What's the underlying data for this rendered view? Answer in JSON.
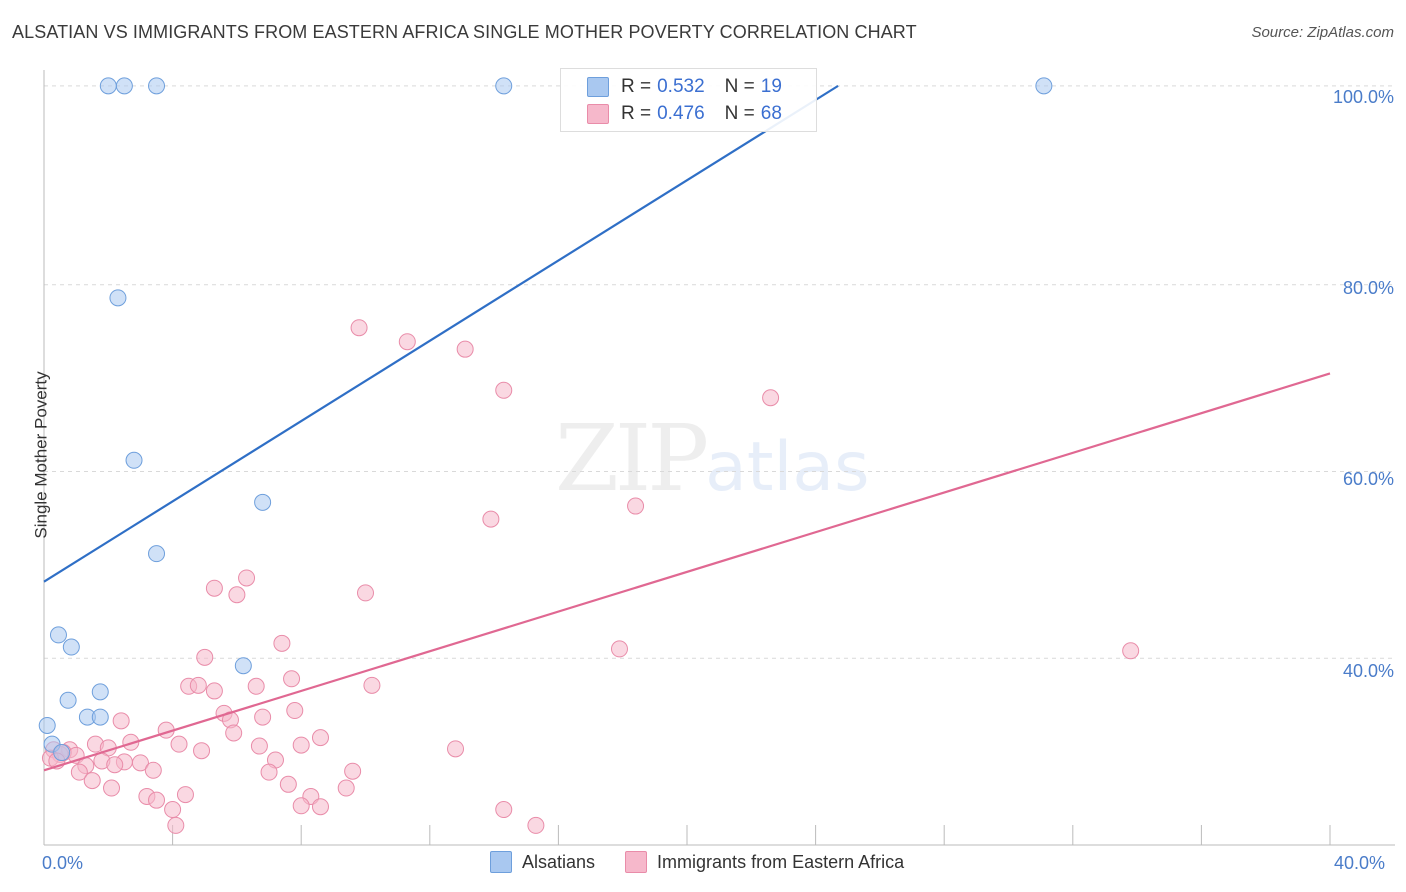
{
  "title": "ALSATIAN VS IMMIGRANTS FROM EASTERN AFRICA SINGLE MOTHER POVERTY CORRELATION CHART",
  "source": "Source: ZipAtlas.com",
  "watermark": {
    "zip": "ZIP",
    "atlas": "atlas"
  },
  "colors": {
    "blue_fill": "#a9c8f0",
    "blue_stroke": "#6e9fdc",
    "blue_line": "#2f6fc6",
    "pink_fill": "#f6b8cb",
    "pink_stroke": "#e98ca9",
    "pink_line": "#e06892",
    "grid": "#d9d9d9",
    "tick_text": "#4a7cc9"
  },
  "legend": {
    "rows": [
      {
        "r_label": "R =",
        "r_value": "0.532",
        "n_label": "N =",
        "n_value": "19"
      },
      {
        "r_label": "R =",
        "r_value": "0.476",
        "n_label": "N =",
        "n_value": "68"
      }
    ]
  },
  "bottom_legend": [
    "Alsatians",
    "Immigrants from Eastern Africa"
  ],
  "chart_data": {
    "type": "scatter",
    "title": "ALSATIAN VS IMMIGRANTS FROM EASTERN AFRICA SINGLE MOTHER POVERTY CORRELATION CHART",
    "xlabel": "",
    "ylabel": "Single Mother Poverty",
    "xlim": [
      0,
      40
    ],
    "ylim": [
      20,
      103
    ],
    "x_tick_labels": [
      "0.0%",
      "40.0%"
    ],
    "y_ticks": [
      40,
      60,
      80,
      100
    ],
    "y_tick_labels": [
      "40.0%",
      "60.0%",
      "80.0%",
      "100.0%"
    ],
    "grid": true,
    "series": [
      {
        "name": "Alsatians",
        "color": "#a9c8f0",
        "regression": {
          "x": [
            0,
            24.7
          ],
          "y": [
            48.2,
            101.3
          ]
        },
        "points": [
          {
            "x": 2.0,
            "y": 101.3
          },
          {
            "x": 2.5,
            "y": 101.3
          },
          {
            "x": 3.5,
            "y": 101.3
          },
          {
            "x": 14.3,
            "y": 101.3
          },
          {
            "x": 31.1,
            "y": 101.3
          },
          {
            "x": 2.3,
            "y": 78.6
          },
          {
            "x": 2.8,
            "y": 61.2
          },
          {
            "x": 6.8,
            "y": 56.7
          },
          {
            "x": 3.5,
            "y": 51.2
          },
          {
            "x": 0.45,
            "y": 42.5
          },
          {
            "x": 0.85,
            "y": 41.2
          },
          {
            "x": 6.2,
            "y": 39.2
          },
          {
            "x": 0.75,
            "y": 35.5
          },
          {
            "x": 1.75,
            "y": 36.4
          },
          {
            "x": 1.35,
            "y": 33.7
          },
          {
            "x": 1.75,
            "y": 33.7
          },
          {
            "x": 0.1,
            "y": 32.8
          },
          {
            "x": 0.25,
            "y": 30.8
          },
          {
            "x": 0.55,
            "y": 29.9
          }
        ]
      },
      {
        "name": "Immigrants from Eastern Africa",
        "color": "#f6b8cb",
        "regression": {
          "x": [
            0,
            40
          ],
          "y": [
            28.0,
            70.5
          ]
        },
        "points": [
          {
            "x": 9.8,
            "y": 75.4
          },
          {
            "x": 11.3,
            "y": 73.9
          },
          {
            "x": 13.1,
            "y": 73.1
          },
          {
            "x": 14.3,
            "y": 68.7
          },
          {
            "x": 22.6,
            "y": 67.9
          },
          {
            "x": 18.4,
            "y": 56.3
          },
          {
            "x": 13.9,
            "y": 54.9
          },
          {
            "x": 6.3,
            "y": 48.6
          },
          {
            "x": 5.3,
            "y": 47.5
          },
          {
            "x": 6.0,
            "y": 46.8
          },
          {
            "x": 10.0,
            "y": 47.0
          },
          {
            "x": 7.4,
            "y": 41.6
          },
          {
            "x": 17.9,
            "y": 41.0
          },
          {
            "x": 33.8,
            "y": 40.8
          },
          {
            "x": 5.0,
            "y": 40.1
          },
          {
            "x": 7.7,
            "y": 37.8
          },
          {
            "x": 4.5,
            "y": 37.0
          },
          {
            "x": 4.8,
            "y": 37.1
          },
          {
            "x": 5.3,
            "y": 36.5
          },
          {
            "x": 6.6,
            "y": 37.0
          },
          {
            "x": 10.2,
            "y": 37.1
          },
          {
            "x": 7.8,
            "y": 34.4
          },
          {
            "x": 5.6,
            "y": 34.1
          },
          {
            "x": 5.8,
            "y": 33.4
          },
          {
            "x": 6.8,
            "y": 33.7
          },
          {
            "x": 2.4,
            "y": 33.3
          },
          {
            "x": 3.8,
            "y": 32.3
          },
          {
            "x": 5.9,
            "y": 32.0
          },
          {
            "x": 8.6,
            "y": 31.5
          },
          {
            "x": 2.7,
            "y": 31.0
          },
          {
            "x": 4.2,
            "y": 30.8
          },
          {
            "x": 6.7,
            "y": 30.6
          },
          {
            "x": 8.0,
            "y": 30.7
          },
          {
            "x": 1.6,
            "y": 30.8
          },
          {
            "x": 2.0,
            "y": 30.4
          },
          {
            "x": 0.3,
            "y": 30.2
          },
          {
            "x": 0.8,
            "y": 30.2
          },
          {
            "x": 12.8,
            "y": 30.3
          },
          {
            "x": 4.9,
            "y": 30.1
          },
          {
            "x": 0.5,
            "y": 29.7
          },
          {
            "x": 0.6,
            "y": 29.9
          },
          {
            "x": 1.0,
            "y": 29.6
          },
          {
            "x": 0.2,
            "y": 29.3
          },
          {
            "x": 0.4,
            "y": 29.0
          },
          {
            "x": 1.8,
            "y": 29.0
          },
          {
            "x": 2.5,
            "y": 28.9
          },
          {
            "x": 3.0,
            "y": 28.8
          },
          {
            "x": 1.3,
            "y": 28.5
          },
          {
            "x": 2.2,
            "y": 28.6
          },
          {
            "x": 7.2,
            "y": 29.1
          },
          {
            "x": 3.4,
            "y": 28.0
          },
          {
            "x": 1.1,
            "y": 27.8
          },
          {
            "x": 7.0,
            "y": 27.8
          },
          {
            "x": 9.6,
            "y": 27.9
          },
          {
            "x": 1.5,
            "y": 26.9
          },
          {
            "x": 7.6,
            "y": 26.5
          },
          {
            "x": 2.1,
            "y": 26.1
          },
          {
            "x": 3.2,
            "y": 25.2
          },
          {
            "x": 4.4,
            "y": 25.4
          },
          {
            "x": 9.4,
            "y": 26.1
          },
          {
            "x": 3.5,
            "y": 24.8
          },
          {
            "x": 8.3,
            "y": 25.2
          },
          {
            "x": 8.0,
            "y": 24.2
          },
          {
            "x": 8.6,
            "y": 24.1
          },
          {
            "x": 4.0,
            "y": 23.8
          },
          {
            "x": 14.3,
            "y": 23.8
          },
          {
            "x": 4.1,
            "y": 22.1
          },
          {
            "x": 15.3,
            "y": 22.1
          }
        ]
      }
    ]
  }
}
